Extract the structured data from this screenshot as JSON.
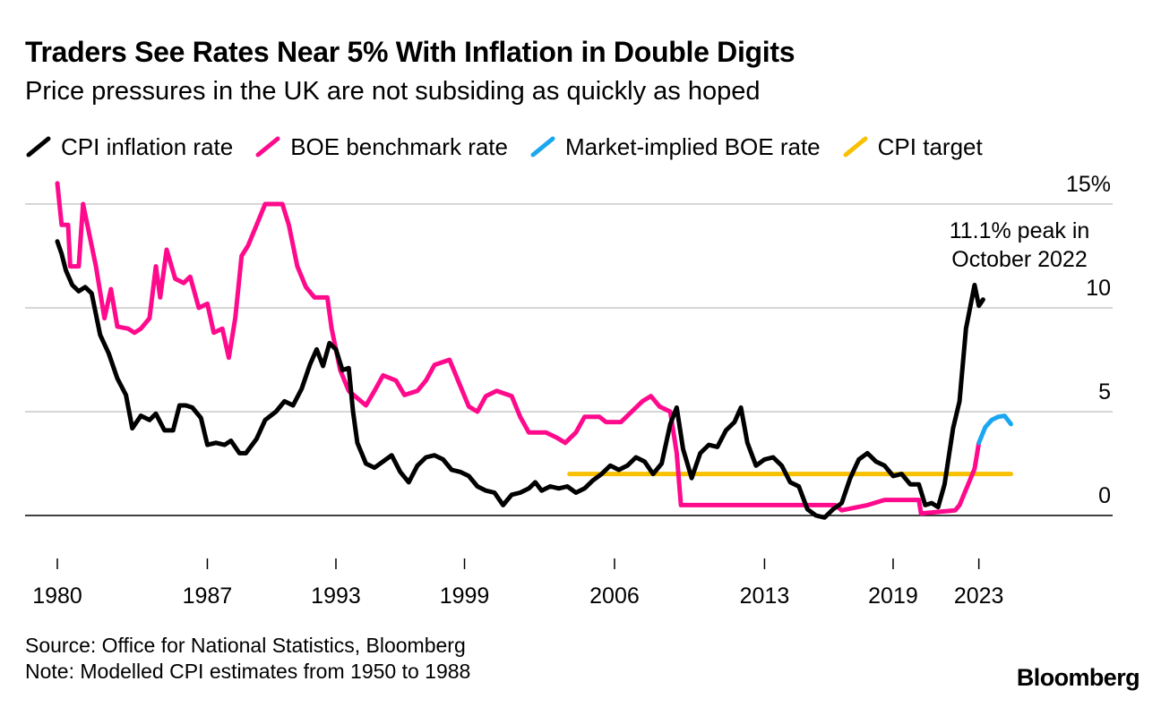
{
  "title": "Traders See Rates Near 5% With Inflation in Double Digits",
  "subtitle": "Price pressures in the UK are not subsiding as quickly as hoped",
  "source": "Source: Office for National Statistics, Bloomberg",
  "note": "Note: Modelled CPI estimates from 1950 to 1988",
  "brand": "Bloomberg",
  "colors": {
    "cpi": "#000000",
    "boe": "#ff0a8c",
    "implied": "#1ba7f0",
    "target": "#f7c000",
    "grid": "#d6d6d6"
  },
  "legend": [
    {
      "key": "cpi",
      "label": "CPI inflation rate"
    },
    {
      "key": "boe",
      "label": "BOE benchmark rate"
    },
    {
      "key": "implied",
      "label": "Market-implied BOE rate"
    },
    {
      "key": "target",
      "label": "CPI target"
    }
  ],
  "chart_data": {
    "type": "line",
    "title": "Traders See Rates Near 5% With Inflation in Double Digits",
    "xlabel": "",
    "ylabel": "",
    "x_unit": "year",
    "xlim": [
      1980,
      2025
    ],
    "ylim": [
      0,
      15
    ],
    "y_ticks": [
      {
        "value": 15,
        "label": "15%"
      },
      {
        "value": 10,
        "label": "10"
      },
      {
        "value": 5,
        "label": "5"
      },
      {
        "value": 0,
        "label": "0"
      }
    ],
    "x_ticks": [
      {
        "value": 1980,
        "label": "1980"
      },
      {
        "value": 1987,
        "label": "1987"
      },
      {
        "value": 1993,
        "label": "1993"
      },
      {
        "value": 1999,
        "label": "1999"
      },
      {
        "value": 2006,
        "label": "2006"
      },
      {
        "value": 2013,
        "label": "2013"
      },
      {
        "value": 2019,
        "label": "2019"
      },
      {
        "value": 2023,
        "label": "2023"
      }
    ],
    "annotation": {
      "lines": [
        "11.1% peak in",
        "October 2022"
      ],
      "x": 2022.8,
      "y": 11.1
    },
    "series": [
      {
        "name": "CPI inflation rate",
        "key": "cpi",
        "points": [
          [
            1980,
            13.2
          ],
          [
            1980.2,
            12.6
          ],
          [
            1980.4,
            11.8
          ],
          [
            1980.7,
            11.1
          ],
          [
            1981,
            10.8
          ],
          [
            1981.3,
            11.0
          ],
          [
            1981.6,
            10.7
          ],
          [
            1982,
            8.7
          ],
          [
            1982.4,
            7.8
          ],
          [
            1982.8,
            6.6
          ],
          [
            1983.2,
            5.8
          ],
          [
            1983.5,
            4.2
          ],
          [
            1983.9,
            4.8
          ],
          [
            1984.3,
            4.6
          ],
          [
            1984.6,
            4.9
          ],
          [
            1985,
            4.1
          ],
          [
            1985.4,
            4.1
          ],
          [
            1985.7,
            5.3
          ],
          [
            1986,
            5.3
          ],
          [
            1986.3,
            5.2
          ],
          [
            1986.7,
            4.7
          ],
          [
            1987,
            3.4
          ],
          [
            1987.4,
            3.5
          ],
          [
            1987.8,
            3.4
          ],
          [
            1988.1,
            3.6
          ],
          [
            1988.5,
            3.0
          ],
          [
            1988.8,
            3.0
          ],
          [
            1989.3,
            3.7
          ],
          [
            1989.7,
            4.6
          ],
          [
            1990.2,
            5.0
          ],
          [
            1990.6,
            5.5
          ],
          [
            1991,
            5.3
          ],
          [
            1991.4,
            6.1
          ],
          [
            1991.8,
            7.3
          ],
          [
            1992.1,
            8.0
          ],
          [
            1992.4,
            7.2
          ],
          [
            1992.7,
            8.3
          ],
          [
            1993,
            8.0
          ],
          [
            1993.3,
            7.0
          ],
          [
            1993.6,
            7.1
          ],
          [
            1993.8,
            5.0
          ],
          [
            1994,
            3.5
          ],
          [
            1994.4,
            2.5
          ],
          [
            1994.8,
            2.3
          ],
          [
            1995.2,
            2.6
          ],
          [
            1995.6,
            2.9
          ],
          [
            1996,
            2.1
          ],
          [
            1996.4,
            1.6
          ],
          [
            1996.8,
            2.4
          ],
          [
            1997.2,
            2.8
          ],
          [
            1997.6,
            2.9
          ],
          [
            1998,
            2.7
          ],
          [
            1998.4,
            2.2
          ],
          [
            1998.8,
            2.1
          ],
          [
            1999.2,
            1.9
          ],
          [
            1999.6,
            1.4
          ],
          [
            2000,
            1.2
          ],
          [
            2000.4,
            1.1
          ],
          [
            2000.8,
            0.5
          ],
          [
            2001.2,
            1.0
          ],
          [
            2001.6,
            1.1
          ],
          [
            2002,
            1.3
          ],
          [
            2002.3,
            1.6
          ],
          [
            2002.6,
            1.2
          ],
          [
            2003,
            1.4
          ],
          [
            2003.4,
            1.3
          ],
          [
            2003.8,
            1.4
          ],
          [
            2004.2,
            1.1
          ],
          [
            2004.6,
            1.3
          ],
          [
            2005,
            1.7
          ],
          [
            2005.4,
            2.0
          ],
          [
            2005.8,
            2.4
          ],
          [
            2006.2,
            2.2
          ],
          [
            2006.6,
            2.4
          ],
          [
            2007,
            2.8
          ],
          [
            2007.4,
            2.6
          ],
          [
            2007.8,
            2.0
          ],
          [
            2008.2,
            2.5
          ],
          [
            2008.6,
            4.4
          ],
          [
            2008.9,
            5.2
          ],
          [
            2009.2,
            3.2
          ],
          [
            2009.6,
            1.8
          ],
          [
            2010,
            3.0
          ],
          [
            2010.4,
            3.4
          ],
          [
            2010.8,
            3.3
          ],
          [
            2011.2,
            4.1
          ],
          [
            2011.6,
            4.5
          ],
          [
            2011.9,
            5.2
          ],
          [
            2012.2,
            3.5
          ],
          [
            2012.6,
            2.4
          ],
          [
            2013,
            2.7
          ],
          [
            2013.4,
            2.8
          ],
          [
            2013.8,
            2.4
          ],
          [
            2014.2,
            1.6
          ],
          [
            2014.6,
            1.4
          ],
          [
            2015,
            0.3
          ],
          [
            2015.4,
            0.0
          ],
          [
            2015.8,
            -0.1
          ],
          [
            2016.2,
            0.3
          ],
          [
            2016.6,
            0.6
          ],
          [
            2017,
            1.8
          ],
          [
            2017.4,
            2.7
          ],
          [
            2017.8,
            3.0
          ],
          [
            2018.2,
            2.6
          ],
          [
            2018.6,
            2.4
          ],
          [
            2019,
            1.9
          ],
          [
            2019.4,
            2.0
          ],
          [
            2019.8,
            1.5
          ],
          [
            2020.2,
            1.5
          ],
          [
            2020.5,
            0.5
          ],
          [
            2020.8,
            0.6
          ],
          [
            2021.1,
            0.4
          ],
          [
            2021.4,
            1.5
          ],
          [
            2021.8,
            4.2
          ],
          [
            2022.1,
            5.5
          ],
          [
            2022.4,
            9.0
          ],
          [
            2022.8,
            11.1
          ],
          [
            2023,
            10.1
          ],
          [
            2023.2,
            10.4
          ]
        ]
      },
      {
        "name": "BOE benchmark rate",
        "key": "boe",
        "points": [
          [
            1980,
            16
          ],
          [
            1980.2,
            14
          ],
          [
            1980.5,
            14
          ],
          [
            1980.6,
            12
          ],
          [
            1981,
            12
          ],
          [
            1981.2,
            15
          ],
          [
            1981.6,
            13
          ],
          [
            1981.8,
            12
          ],
          [
            1982.2,
            9.5
          ],
          [
            1982.5,
            10.9
          ],
          [
            1982.8,
            9.1
          ],
          [
            1983.3,
            9.0
          ],
          [
            1983.6,
            8.8
          ],
          [
            1983.9,
            9.0
          ],
          [
            1984.3,
            9.5
          ],
          [
            1984.6,
            12
          ],
          [
            1984.8,
            10.5
          ],
          [
            1985.1,
            12.8
          ],
          [
            1985.5,
            11.4
          ],
          [
            1985.9,
            11.2
          ],
          [
            1986.2,
            11.5
          ],
          [
            1986.6,
            10
          ],
          [
            1987,
            10.2
          ],
          [
            1987.3,
            8.8
          ],
          [
            1987.7,
            9.0
          ],
          [
            1988,
            7.6
          ],
          [
            1988.3,
            9.5
          ],
          [
            1988.6,
            12.5
          ],
          [
            1988.9,
            13.0
          ],
          [
            1989.3,
            14.0
          ],
          [
            1989.7,
            15.0
          ],
          [
            1990.5,
            15.0
          ],
          [
            1990.8,
            14.0
          ],
          [
            1991.2,
            12.0
          ],
          [
            1991.6,
            11.0
          ],
          [
            1992,
            10.5
          ],
          [
            1992.6,
            10.5
          ],
          [
            1992.8,
            9.0
          ],
          [
            1993.2,
            7.0
          ],
          [
            1993.6,
            6.0
          ],
          [
            1994.4,
            5.3
          ],
          [
            1994.8,
            6.0
          ],
          [
            1995.2,
            6.75
          ],
          [
            1995.8,
            6.5
          ],
          [
            1996.2,
            5.8
          ],
          [
            1996.8,
            6.0
          ],
          [
            1997.2,
            6.5
          ],
          [
            1997.6,
            7.25
          ],
          [
            1998.3,
            7.5
          ],
          [
            1998.8,
            6.25
          ],
          [
            1999.2,
            5.25
          ],
          [
            1999.6,
            5.0
          ],
          [
            2000,
            5.75
          ],
          [
            2000.5,
            6.0
          ],
          [
            2001.2,
            5.75
          ],
          [
            2001.6,
            4.75
          ],
          [
            2002,
            4.0
          ],
          [
            2002.8,
            4.0
          ],
          [
            2003.3,
            3.75
          ],
          [
            2003.7,
            3.5
          ],
          [
            2004.2,
            4.0
          ],
          [
            2004.6,
            4.75
          ],
          [
            2005.3,
            4.75
          ],
          [
            2005.6,
            4.5
          ],
          [
            2006.3,
            4.5
          ],
          [
            2006.8,
            5.0
          ],
          [
            2007.3,
            5.5
          ],
          [
            2007.7,
            5.75
          ],
          [
            2008.1,
            5.25
          ],
          [
            2008.6,
            5.0
          ],
          [
            2008.9,
            3.0
          ],
          [
            2009.1,
            0.5
          ],
          [
            2016.3,
            0.5
          ],
          [
            2016.6,
            0.25
          ],
          [
            2017.8,
            0.5
          ],
          [
            2018.6,
            0.75
          ],
          [
            2020.2,
            0.75
          ],
          [
            2020.3,
            0.1
          ],
          [
            2021.9,
            0.25
          ],
          [
            2022.1,
            0.5
          ],
          [
            2022.3,
            1.0
          ],
          [
            2022.6,
            1.75
          ],
          [
            2022.8,
            2.25
          ],
          [
            2023,
            3.5
          ]
        ]
      },
      {
        "name": "Market-implied BOE rate",
        "key": "implied",
        "points": [
          [
            2023,
            3.5
          ],
          [
            2023.3,
            4.25
          ],
          [
            2023.6,
            4.6
          ],
          [
            2023.9,
            4.75
          ],
          [
            2024.2,
            4.8
          ],
          [
            2024.5,
            4.4
          ]
        ]
      },
      {
        "name": "CPI target",
        "key": "target",
        "points": [
          [
            2003.9,
            2.0
          ],
          [
            2024.5,
            2.0
          ]
        ]
      }
    ]
  }
}
